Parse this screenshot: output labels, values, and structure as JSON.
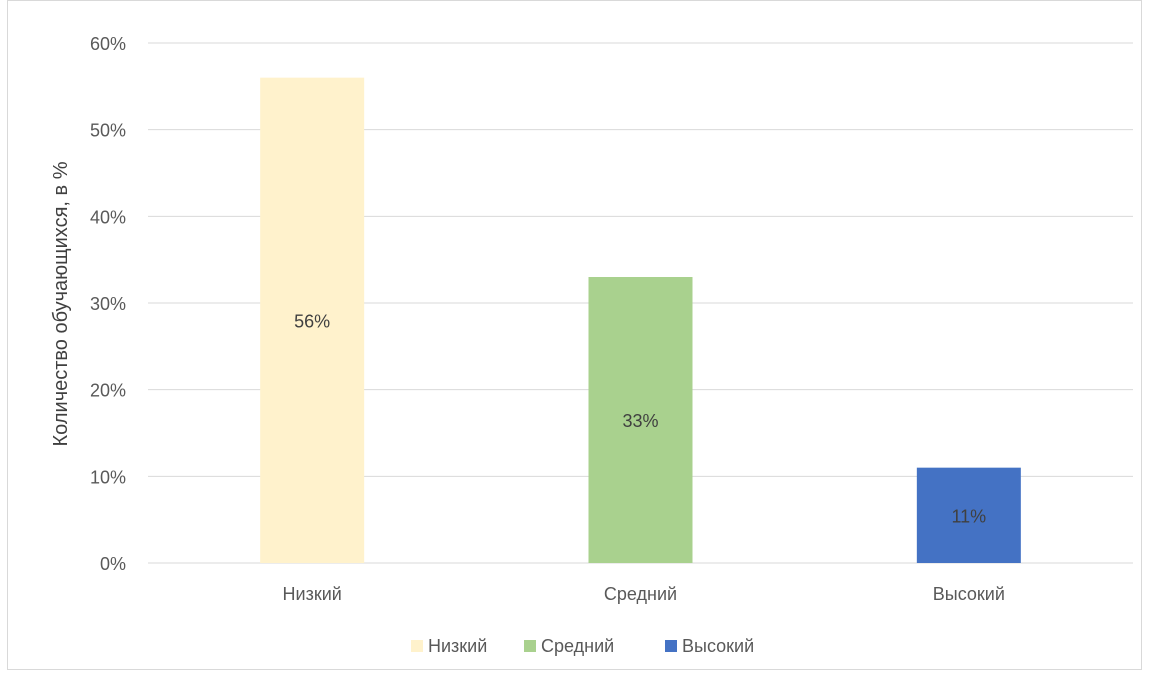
{
  "chart_data": {
    "type": "bar",
    "categories": [
      "Низкий",
      "Средний",
      "Высокий"
    ],
    "values": [
      56,
      33,
      11
    ],
    "data_labels": [
      "56%",
      "33%",
      "11%"
    ],
    "colors": [
      "#FFF2CC",
      "#A9D18E",
      "#4472C4"
    ],
    "legend": [
      "Низкий",
      "Средний",
      "Высокий"
    ],
    "ylabel": "Количество обучающихся, в %",
    "ylim": [
      0,
      60
    ],
    "yticks": [
      0,
      10,
      20,
      30,
      40,
      50,
      60
    ],
    "ytick_labels": [
      "0%",
      "10%",
      "20%",
      "30%",
      "40%",
      "50%",
      "60%"
    ],
    "grid": true,
    "legend_position": "bottom"
  }
}
